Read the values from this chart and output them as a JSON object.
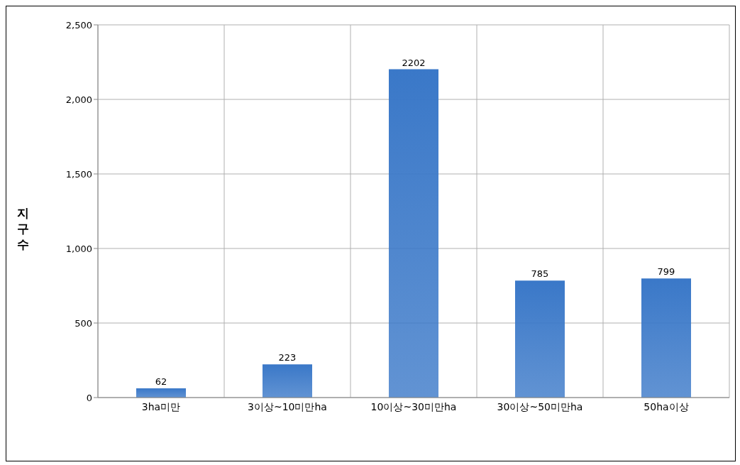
{
  "chart_data": {
    "type": "bar",
    "ylabel": "지구수",
    "categories": [
      "3ha미만",
      "3이상~10미만ha",
      "10이상~30미만ha",
      "30이상~50미만ha",
      "50ha이상"
    ],
    "values": [
      62,
      223,
      2202,
      785,
      799
    ],
    "color": "#3a78c8",
    "ylim": [
      0,
      2500
    ],
    "yticks": [
      {
        "value": 0,
        "label": "0"
      },
      {
        "value": 500,
        "label": "500"
      },
      {
        "value": 1000,
        "label": "1,000"
      },
      {
        "value": 1500,
        "label": "1,500"
      },
      {
        "value": 2000,
        "label": "2,000"
      },
      {
        "value": 2500,
        "label": "2,500"
      }
    ],
    "grid": true,
    "data_labels": true
  }
}
